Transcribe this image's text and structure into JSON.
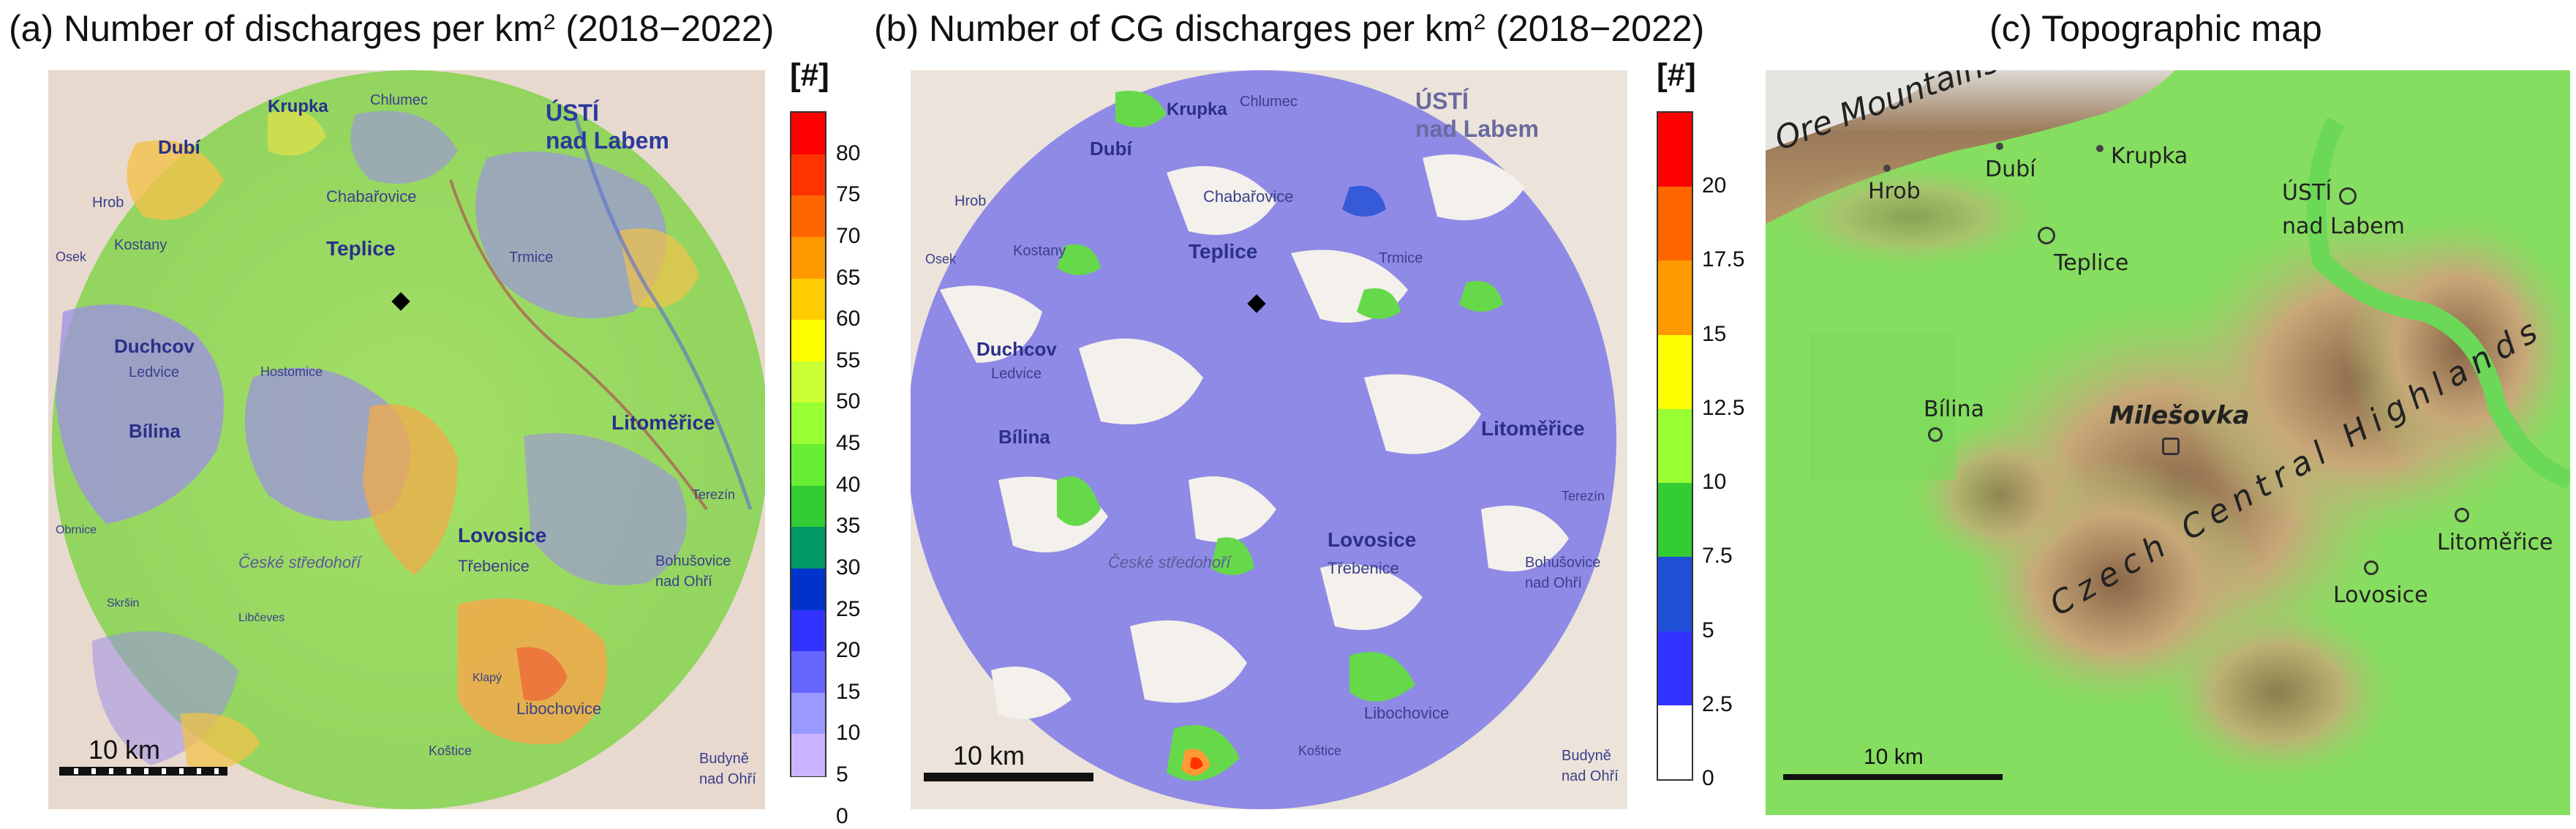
{
  "panels": {
    "a": {
      "title_pre": "(a) Number of discharges per km",
      "title_sup": "2",
      "title_post": " (2018−2022)",
      "unit": "[#]",
      "ticks": [
        "80",
        "75",
        "70",
        "65",
        "60",
        "55",
        "50",
        "45",
        "40",
        "35",
        "30",
        "25",
        "20",
        "15",
        "10",
        "5",
        "0"
      ],
      "scale_label": "10 km",
      "places": {
        "krupka": "Krupka",
        "chlumec": "Chlumec",
        "usti1": "ÚSTÍ",
        "usti2": "nad Labem",
        "dubi": "Dubí",
        "hrob": "Hrob",
        "chabarovice": "Chabařovice",
        "kostany": "Kostany",
        "osek": "Osek",
        "teplice": "Teplice",
        "trmice": "Trmice",
        "duchcov": "Duchcov",
        "ledvice": "Ledvice",
        "hostomice": "Hostomice",
        "bilina": "Bílina",
        "litomerice": "Litoměřice",
        "lovosice": "Lovosice",
        "trebenice": "Třebenice",
        "bohusovice1": "Bohušovice",
        "bohusovice2": "nad Ohří",
        "terezin": "Terezín",
        "libochovice": "Libochovice",
        "budyne1": "Budyně",
        "budyne2": "nad Ohří",
        "ceske1": "České",
        "ceske2": "České středohoří",
        "kosice": "Koštice",
        "klapy": "Klapý",
        "obrnice": "Obrnice",
        "libcevez": "Libčeves",
        "skrsan": "Skršin"
      }
    },
    "b": {
      "title_pre": "(b) Number of CG discharges per km",
      "title_sup": "2",
      "title_post": " (2018−2022)",
      "unit": "[#]",
      "ticks": [
        "20",
        "17.5",
        "15",
        "12.5",
        "10",
        "7.5",
        "5",
        "2.5",
        "0"
      ],
      "scale_label": "10 km",
      "places": {
        "krupka": "Krupka",
        "chlumec": "Chlumec",
        "usti1": "ÚSTÍ",
        "usti2": "nad Labem",
        "dubi": "Dubí",
        "hrob": "Hrob",
        "chabarovice": "Chabařovice",
        "kostany": "Kostany",
        "osek": "Osek",
        "teplice": "Teplice",
        "trmice": "Trmice",
        "duchcov": "Duchcov",
        "ledvice": "Ledvice",
        "bilina": "Bílina",
        "litomerice": "Litoměřice",
        "lovosice": "Lovosice",
        "trebenice": "Třebenice",
        "bohusovice1": "Bohušovice",
        "bohusovice2": "nad Ohří",
        "terezin": "Terezín",
        "libochovice": "Libochovice",
        "budyne1": "Budyně",
        "budyne2": "nad Ohří",
        "ceske": "České středohoří",
        "kosice": "Koštice"
      }
    },
    "c": {
      "title": "(c) Topographic map",
      "scale_label": "10 km",
      "labels": {
        "ore": "Ore Mountains",
        "hrob": "Hrob",
        "dubi": "Dubí",
        "krupka": "Krupka",
        "usti1": "ÚSTÍ",
        "usti2": "nad Labem",
        "teplice": "Teplice",
        "bilina": "Bílina",
        "milesovka": "Milešovka",
        "highlands": "Czech Central Highlands",
        "litomerice": "Litoměřice",
        "lovosice": "Lovosice"
      }
    }
  },
  "colors": {
    "a_scale": [
      "#ff0000",
      "#ff3300",
      "#ff6600",
      "#ff9900",
      "#ffcc00",
      "#ffff00",
      "#ccff33",
      "#99ff33",
      "#66ee33",
      "#33cc33",
      "#009966",
      "#0033cc",
      "#3333ff",
      "#6666ff",
      "#9999ff",
      "#ccb3ff"
    ],
    "b_scale": [
      "#ff0000",
      "#ff6600",
      "#ff9900",
      "#ffff00",
      "#99ff33",
      "#33cc33",
      "#1f4fd6",
      "#3333ff",
      "#ffffff"
    ]
  }
}
